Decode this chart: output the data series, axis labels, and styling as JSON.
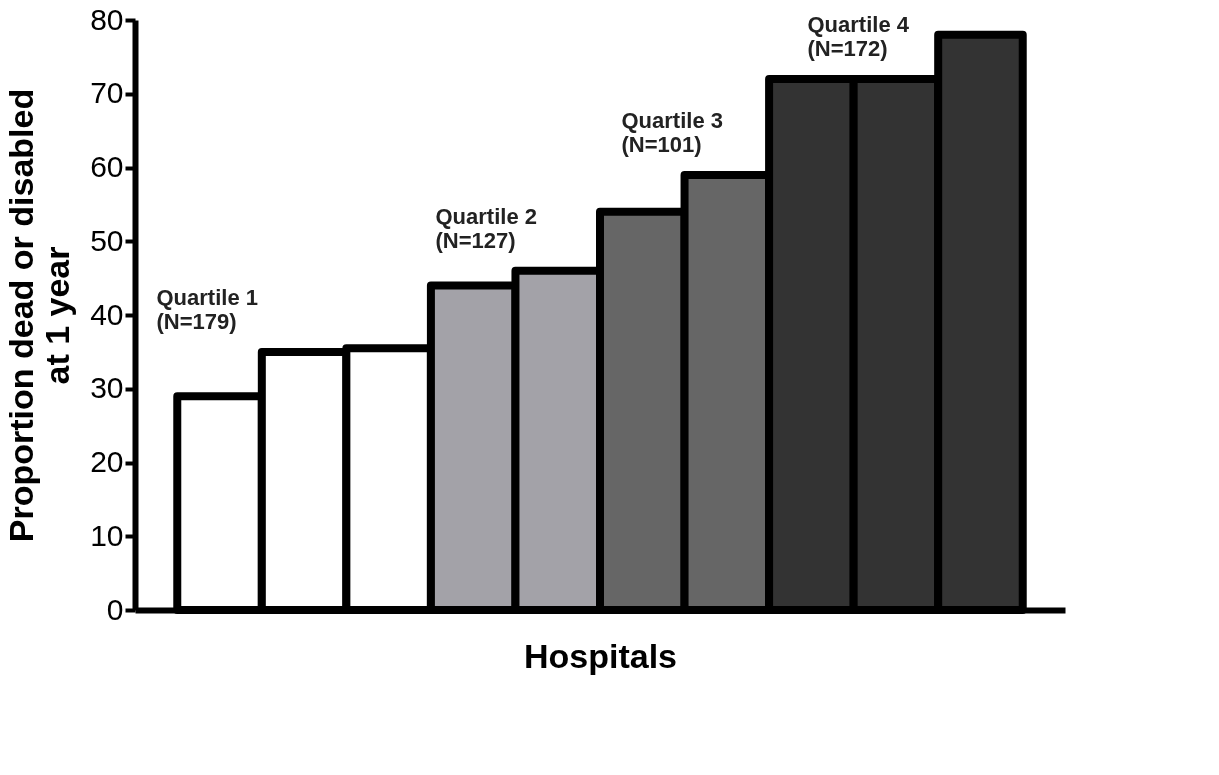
{
  "chart_data": {
    "type": "bar",
    "xlabel": "Hospitals",
    "ylabel": "Proportion dead or disabled\nat 1 year",
    "categories": [
      null,
      null,
      null,
      null,
      null,
      null,
      null,
      null,
      null,
      null
    ],
    "values": [
      29,
      35,
      35.5,
      44,
      46,
      54,
      59,
      72,
      72,
      78
    ],
    "colors": [
      "#ffffff",
      "#ffffff",
      "#ffffff",
      "#a3a2a8",
      "#a3a2a8",
      "#666666",
      "#666666",
      "#333333",
      "#333333",
      "#333333"
    ],
    "ylim": [
      0,
      80
    ],
    "yticks": [
      0,
      10,
      20,
      30,
      40,
      50,
      60,
      70,
      80
    ],
    "grid": false,
    "annotations": [
      "Quartile 1\n(N=179)",
      "Quartile 2\n(N=127)",
      "Quartile 3\n(N=101)",
      "Quartile 4\n(N=172)"
    ]
  }
}
